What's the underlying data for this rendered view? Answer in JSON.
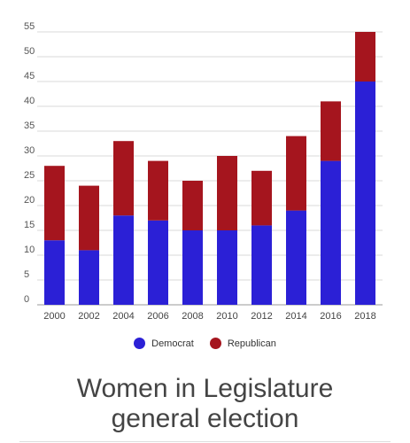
{
  "chart_data": {
    "type": "bar",
    "stacked": true,
    "categories": [
      "2000",
      "2002",
      "2004",
      "2006",
      "2008",
      "2010",
      "2012",
      "2014",
      "2016",
      "2018"
    ],
    "series": [
      {
        "name": "Democrat",
        "color": "#2b20d6",
        "values": [
          13,
          11,
          18,
          17,
          15,
          15,
          16,
          19,
          29,
          45
        ]
      },
      {
        "name": "Republican",
        "color": "#a5151e",
        "values": [
          15,
          13,
          15,
          12,
          10,
          15,
          11,
          15,
          12,
          10
        ]
      }
    ],
    "ylim": [
      0,
      55
    ],
    "yticks": [
      0,
      5,
      10,
      15,
      20,
      25,
      30,
      35,
      40,
      45,
      50,
      55
    ],
    "grid": true,
    "legend_position": "bottom",
    "title_lines": [
      "Women in Legislature",
      "general election"
    ]
  },
  "legend": {
    "democrat_label": "Democrat",
    "republican_label": "Republican",
    "democrat_color": "#2b20d6",
    "republican_color": "#a5151e"
  },
  "title": {
    "line1": "Women in Legislature",
    "line2": "general election"
  }
}
